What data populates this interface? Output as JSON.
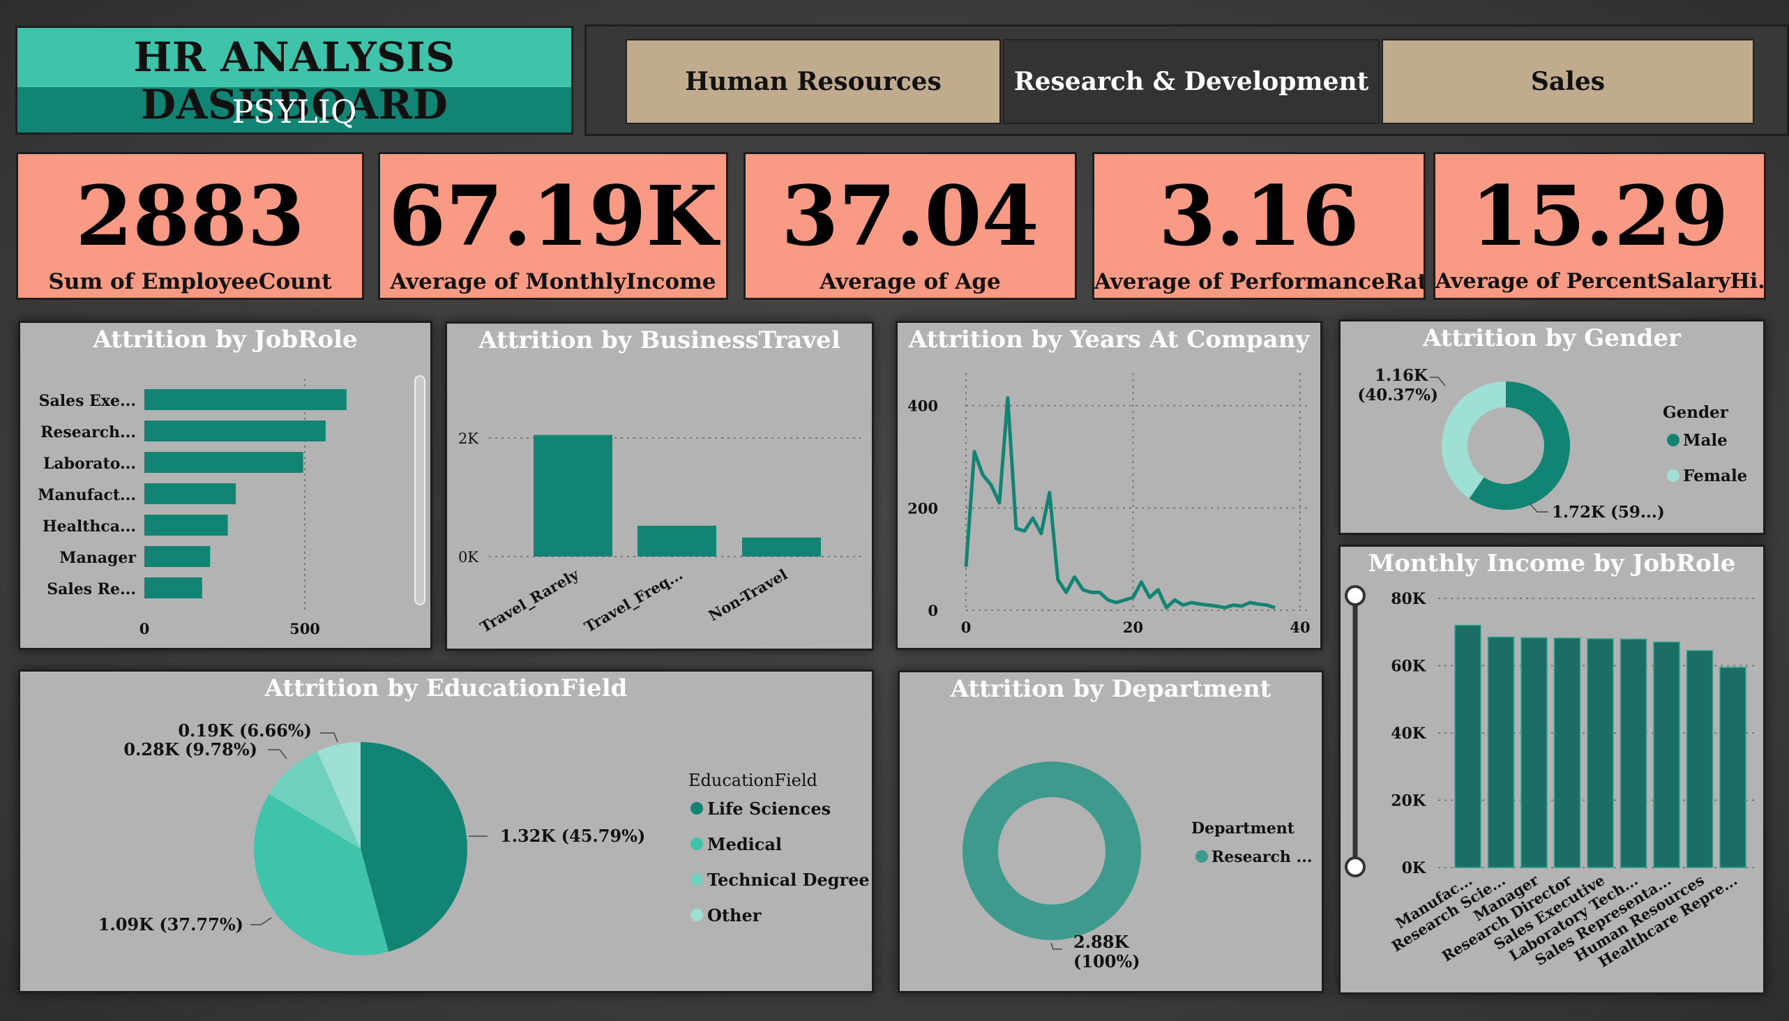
{
  "header": {
    "title": "HR ANALYSIS DASHBOARD",
    "subtitle": "PSYLIQ"
  },
  "slicer": {
    "buttons": [
      {
        "label": "Human Resources",
        "selected": false
      },
      {
        "label": "Research & Development",
        "selected": true
      },
      {
        "label": "Sales",
        "selected": false
      }
    ]
  },
  "kpis": [
    {
      "value": "2883",
      "label": "Sum of EmployeeCount"
    },
    {
      "value": "67.19K",
      "label": "Average of MonthlyIncome"
    },
    {
      "value": "37.04",
      "label": "Average of Age"
    },
    {
      "value": "3.16",
      "label": "Average of PerformanceRating"
    },
    {
      "value": "15.29",
      "label": "Average of PercentSalaryHi..."
    }
  ],
  "colors": {
    "teal": "#128474",
    "teal_light": "#40c3ab",
    "teal_pale": "#9ee0d4",
    "kpi_bg": "#f89a84",
    "panel_bg": "#b3b3b3"
  },
  "panels": {
    "jobrole": "Attrition by JobRole",
    "travel": "Attrition by BusinessTravel",
    "years": "Attrition by Years At Company",
    "gender": "Attrition by Gender",
    "education": "Attrition by EducationField",
    "department": "Attrition by Department",
    "income": "Monthly Income by JobRole"
  },
  "chart_data": [
    {
      "id": "jobrole",
      "type": "bar",
      "orientation": "horizontal",
      "title": "Attrition by JobRole",
      "categories": [
        "Sales Exe...",
        "Research...",
        "Laborato...",
        "Manufact...",
        "Healthca...",
        "Manager",
        "Sales Re..."
      ],
      "values": [
        630,
        565,
        495,
        285,
        260,
        205,
        180
      ],
      "x_ticks": [
        "0",
        "500"
      ],
      "xlim": [
        0,
        800
      ]
    },
    {
      "id": "travel",
      "type": "bar",
      "title": "Attrition by BusinessTravel",
      "categories": [
        "Travel_Rarely",
        "Travel_Freq...",
        "Non-Travel"
      ],
      "values": [
        2050,
        520,
        320
      ],
      "y_ticks": [
        "2K",
        "0K"
      ],
      "ylim": [
        0,
        2300
      ]
    },
    {
      "id": "years",
      "type": "line",
      "title": "Attrition by Years At Company",
      "x": [
        0,
        1,
        2,
        3,
        4,
        5,
        6,
        7,
        8,
        9,
        10,
        11,
        12,
        13,
        14,
        15,
        16,
        17,
        18,
        19,
        20,
        21,
        22,
        23,
        24,
        25,
        26,
        27,
        28,
        29,
        30,
        31,
        32,
        33,
        34,
        35,
        36,
        37
      ],
      "y": [
        85,
        310,
        265,
        245,
        210,
        415,
        160,
        155,
        180,
        150,
        230,
        60,
        35,
        65,
        40,
        35,
        35,
        20,
        15,
        20,
        25,
        55,
        25,
        40,
        5,
        20,
        10,
        15,
        12,
        10,
        8,
        5,
        10,
        8,
        15,
        12,
        10,
        5
      ],
      "x_ticks": [
        "0",
        "20",
        "40"
      ],
      "y_ticks": [
        "400",
        "200",
        "0"
      ],
      "xlim": [
        0,
        40
      ],
      "ylim": [
        0,
        450
      ]
    },
    {
      "id": "gender",
      "type": "pie",
      "donut": true,
      "title": "Attrition by Gender",
      "legend_title": "Gender",
      "categories": [
        "Male",
        "Female"
      ],
      "values": [
        59.63,
        40.37
      ],
      "labels": [
        "1.72K (59...)",
        "1.16K (40.37%)"
      ],
      "label_lines": [
        "1.16K",
        "(40.37%)"
      ]
    },
    {
      "id": "education",
      "type": "pie",
      "title": "Attrition by EducationField",
      "legend_title": "EducationField",
      "categories": [
        "Life Sciences",
        "Medical",
        "Technical Degree",
        "Other"
      ],
      "values": [
        45.79,
        37.77,
        9.78,
        6.66
      ],
      "labels": [
        "1.32K (45.79%)",
        "1.09K (37.77%)",
        "0.28K (9.78%)",
        "0.19K (6.66%)"
      ]
    },
    {
      "id": "department",
      "type": "pie",
      "donut": true,
      "title": "Attrition by Department",
      "legend_title": "Department",
      "categories": [
        "Research ..."
      ],
      "values": [
        100
      ],
      "label_lines": [
        "2.88K",
        "(100%)"
      ]
    },
    {
      "id": "income",
      "type": "bar",
      "title": "Monthly Income by JobRole",
      "categories": [
        "Manufac...",
        "Research Scie...",
        "Manager",
        "Research Director",
        "Sales Executive",
        "Laboratory Tech...",
        "Sales Representa...",
        "Human Resources",
        "Healthcare Repre..."
      ],
      "values": [
        72000,
        68500,
        68300,
        68200,
        68000,
        67900,
        67000,
        64500,
        59500
      ],
      "y_ticks": [
        "80K",
        "60K",
        "40K",
        "20K",
        "0K"
      ],
      "ylim": [
        0,
        80000
      ]
    }
  ]
}
